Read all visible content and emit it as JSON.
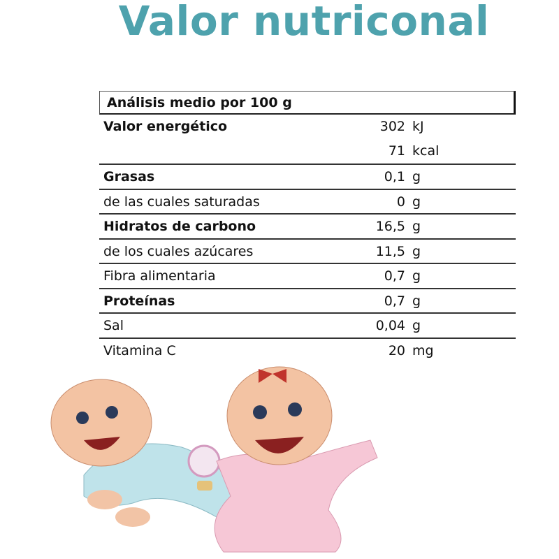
{
  "title": "Valor nutriconal",
  "colors": {
    "accent": "#4ea2ad"
  },
  "table": {
    "header": "Análisis medio por 100 g",
    "energy": {
      "label": "Valor energético",
      "values": [
        {
          "value": "302",
          "unit": "kJ"
        },
        {
          "value": "71",
          "unit": "kcal"
        }
      ]
    },
    "rows": [
      {
        "label": "Grasas",
        "value": "0,1",
        "unit": "g",
        "bold": true
      },
      {
        "label": "de las cuales saturadas",
        "value": "0",
        "unit": "g",
        "bold": false
      },
      {
        "label": "Hidratos de carbono",
        "value": "16,5",
        "unit": "g",
        "bold": true
      },
      {
        "label": "de los cuales azúcares",
        "value": "11,5",
        "unit": "g",
        "bold": false
      },
      {
        "label": "Fibra alimentaria",
        "value": "0,7",
        "unit": "g",
        "bold": false
      },
      {
        "label": "Proteínas",
        "value": "0,7",
        "unit": "g",
        "bold": true
      },
      {
        "label": "Sal",
        "value": "0,04",
        "unit": "g",
        "bold": false
      },
      {
        "label": "Vitamina C",
        "value": "20",
        "unit": "mg",
        "bold": false
      }
    ]
  }
}
